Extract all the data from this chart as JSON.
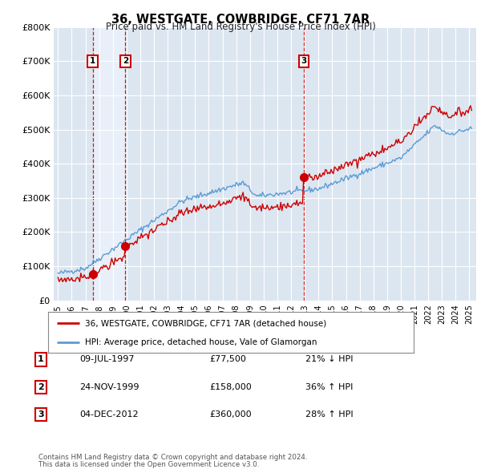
{
  "title": "36, WESTGATE, COWBRIDGE, CF71 7AR",
  "subtitle": "Price paid vs. HM Land Registry's House Price Index (HPI)",
  "legend_line1": "36, WESTGATE, COWBRIDGE, CF71 7AR (detached house)",
  "legend_line2": "HPI: Average price, detached house, Vale of Glamorgan",
  "footer1": "Contains HM Land Registry data © Crown copyright and database right 2024.",
  "footer2": "This data is licensed under the Open Government Licence v3.0.",
  "sale_markers": [
    {
      "label": "1",
      "date_x": 1997.53,
      "price": 77500
    },
    {
      "label": "2",
      "date_x": 1999.92,
      "price": 158000
    },
    {
      "label": "3",
      "date_x": 2012.92,
      "price": 360000
    }
  ],
  "table_rows": [
    {
      "num": "1",
      "date": "09-JUL-1997",
      "price": "£77,500",
      "change": "21% ↓ HPI"
    },
    {
      "num": "2",
      "date": "24-NOV-1999",
      "price": "£158,000",
      "change": "36% ↑ HPI"
    },
    {
      "num": "3",
      "date": "04-DEC-2012",
      "price": "£360,000",
      "change": "28% ↑ HPI"
    }
  ],
  "ylim": [
    0,
    800000
  ],
  "xlim": [
    1994.7,
    2025.5
  ],
  "yticks": [
    0,
    100000,
    200000,
    300000,
    400000,
    500000,
    600000,
    700000,
    800000
  ],
  "ytick_labels": [
    "£0",
    "£100K",
    "£200K",
    "£300K",
    "£400K",
    "£500K",
    "£600K",
    "£700K",
    "£800K"
  ],
  "xticks": [
    1995,
    1996,
    1997,
    1998,
    1999,
    2000,
    2001,
    2002,
    2003,
    2004,
    2005,
    2006,
    2007,
    2008,
    2009,
    2010,
    2011,
    2012,
    2013,
    2014,
    2015,
    2016,
    2017,
    2018,
    2019,
    2020,
    2021,
    2022,
    2023,
    2024,
    2025
  ],
  "hpi_color": "#5b9bd5",
  "sale_color": "#cc0000",
  "dashed_color": "#cc0000",
  "bg_chart": "#dce6f1",
  "bg_col_shade": "#e8eff8",
  "bg_figure": "#ffffff",
  "grid_color": "#ffffff",
  "marker_box_color": "#cc0000"
}
